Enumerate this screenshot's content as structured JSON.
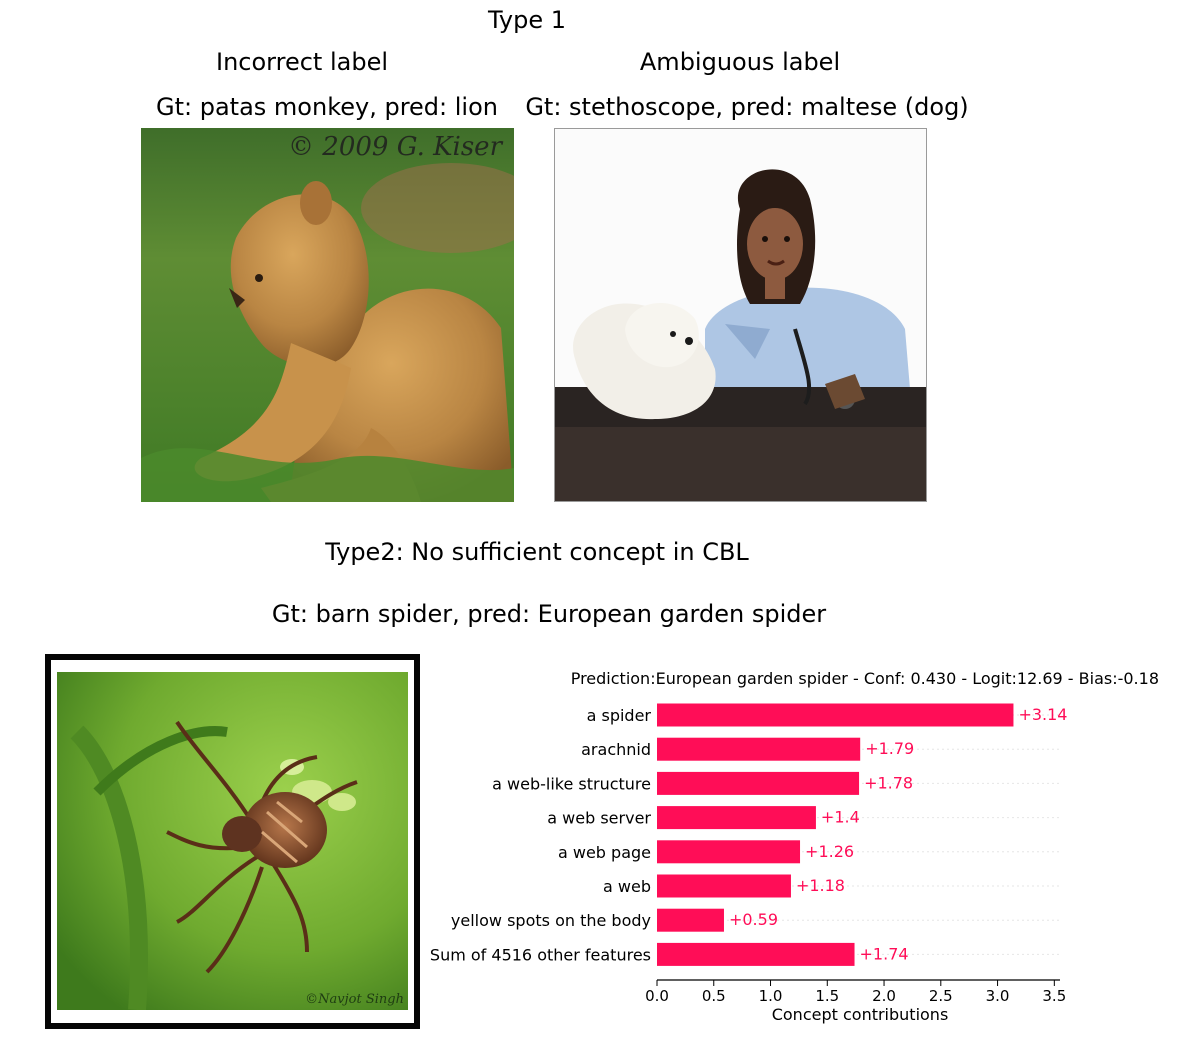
{
  "type1": {
    "heading": "Type 1",
    "incorrect": {
      "title": "Incorrect label",
      "caption": "Gt: patas monkey, pred: lion",
      "watermark": "© 2009 G. Kiser"
    },
    "ambiguous": {
      "title": "Ambiguous label",
      "caption": "Gt: stethoscope, pred: maltese (dog)"
    }
  },
  "type2": {
    "heading": "Type2: No sufficient concept in CBL",
    "caption": "Gt: barn spider, pred: European garden spider",
    "watermark": "©Navjot Singh"
  },
  "chart_data": {
    "type": "bar",
    "orientation": "horizontal",
    "title": "Prediction:European garden spider - Conf: 0.430 - Logit:12.69 - Bias:-0.18",
    "xlabel": "Concept contributions",
    "xlim": [
      0,
      3.55
    ],
    "xticks": [
      0.0,
      0.5,
      1.0,
      1.5,
      2.0,
      2.5,
      3.0,
      3.5
    ],
    "xtick_labels": [
      "0.0",
      "0.5",
      "1.0",
      "1.5",
      "2.0",
      "2.5",
      "3.0",
      "3.5"
    ],
    "bar_color": "#ff0d57",
    "categories": [
      "a spider",
      "arachnid",
      "a web-like structure",
      "a web server",
      "a web page",
      "a web",
      "yellow spots on the body",
      "Sum of 4516 other features"
    ],
    "values": [
      3.14,
      1.79,
      1.78,
      1.4,
      1.26,
      1.18,
      0.59,
      1.74
    ],
    "value_labels": [
      "+3.14",
      "+1.79",
      "+1.78",
      "+1.4",
      "+1.26",
      "+1.18",
      "+0.59",
      "+1.74"
    ]
  }
}
